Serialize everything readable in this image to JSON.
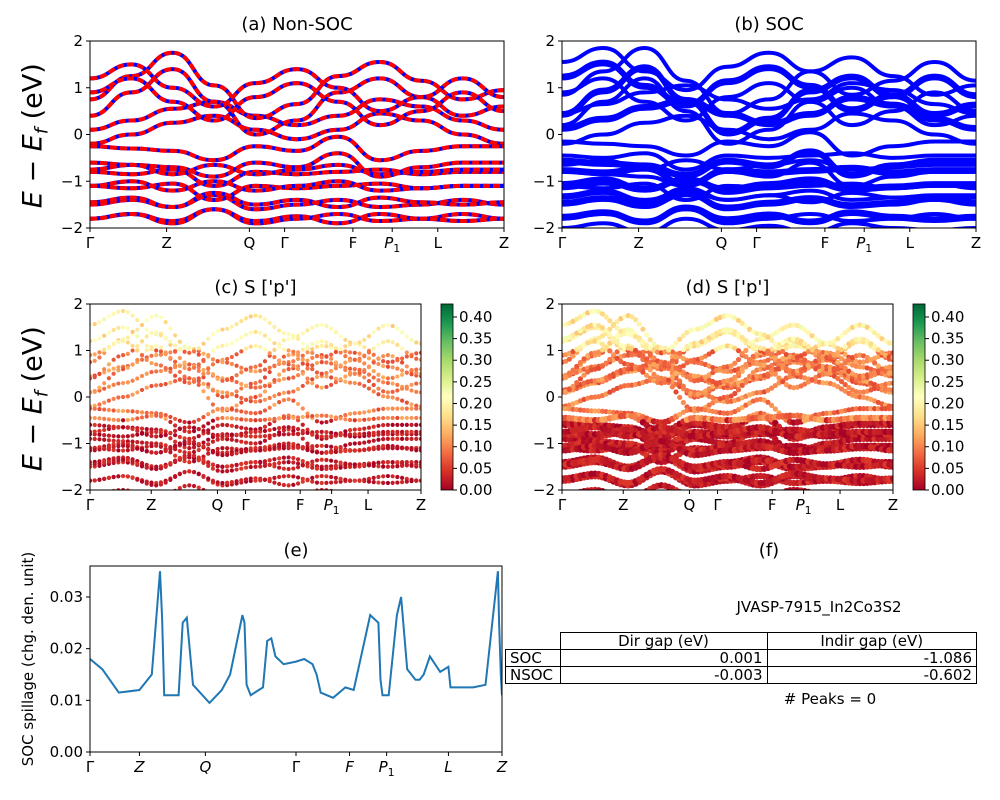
{
  "panels": {
    "a": {
      "title": "(a) Non-SOC"
    },
    "b": {
      "title": "(b) SOC"
    },
    "c": {
      "title": "(c)  S ['p']"
    },
    "d": {
      "title": "(d) S ['p']"
    },
    "e": {
      "title": "(e)"
    },
    "f": {
      "title": "(f)"
    }
  },
  "ylabel_energy": "E − E_f (eV)",
  "ylabel_spillage": "SOC spillage (chg. den. unit)",
  "kpath": [
    "Γ",
    "Z",
    "Q",
    "Γ",
    "F",
    "P1",
    "L",
    "Z"
  ],
  "material": "JVASP-7915_In2Co3S2",
  "gap_table": {
    "headers": [
      "",
      "Dir gap (eV)",
      "Indir gap (eV)"
    ],
    "rows": [
      [
        "SOC",
        "0.001",
        "-1.086"
      ],
      [
        "NSOC",
        "-0.003",
        "-0.602"
      ]
    ]
  },
  "peaks_text": "# Peaks = 0",
  "colors": {
    "nonsoc_up": "#0000ff",
    "nonsoc_dn": "#ff0000",
    "soc": "#0000ff",
    "spillage": "#1f77b4",
    "colormap": "RdYlGn"
  },
  "chart_data": [
    {
      "type": "line",
      "id": "a",
      "title": "(a) Non-SOC",
      "ylabel": "E − E_f (eV)",
      "ylim": [
        -2,
        2
      ],
      "yticks": [
        -2,
        -1,
        0,
        1,
        2
      ],
      "xticks": [
        "Γ",
        "Z",
        "Q",
        "Γ",
        "F",
        "P1",
        "L",
        "Z"
      ],
      "series": [
        {
          "values": [
            0.1,
            0.3,
            0.55,
            0.7,
            0.4,
            0.2,
            0.4,
            0.75,
            0.6,
            0.3,
            0.1
          ]
        },
        {
          "values": [
            0.4,
            0.9,
            1.4,
            0.7,
            0.0,
            0.3,
            0.9,
            1.2,
            0.8,
            0.4,
            0.6
          ]
        },
        {
          "values": [
            1.2,
            1.5,
            1.0,
            0.6,
            1.1,
            1.4,
            1.0,
            0.5,
            0.8,
            1.2,
            0.8
          ]
        },
        {
          "values": [
            -0.6,
            -0.65,
            -0.7,
            -0.9,
            -0.6,
            -0.7,
            -0.4,
            -0.9,
            -0.7,
            -0.6,
            -0.6
          ]
        },
        {
          "values": [
            -0.8,
            -0.85,
            -0.75,
            -1.1,
            -0.8,
            -0.85,
            -0.8,
            -0.75,
            -0.85,
            -0.8,
            -0.8
          ]
        },
        {
          "values": [
            -1.1,
            -1.0,
            -1.2,
            -1.0,
            -1.2,
            -1.1,
            -1.0,
            -1.2,
            -1.15,
            -1.1,
            -1.1
          ]
        },
        {
          "values": [
            -1.5,
            -1.4,
            -1.55,
            -1.3,
            -1.6,
            -1.5,
            -1.4,
            -1.55,
            -1.5,
            -1.4,
            -1.5
          ]
        },
        {
          "values": [
            -1.8,
            -1.7,
            -1.9,
            -1.6,
            -1.85,
            -1.75,
            -1.9,
            -1.7,
            -1.8,
            -1.85,
            -1.8
          ]
        }
      ]
    },
    {
      "type": "line",
      "id": "b",
      "title": "(b) SOC",
      "ylim": [
        -2,
        2
      ],
      "yticks": [
        -2,
        -1,
        0,
        1,
        2
      ],
      "xticks": [
        "Γ",
        "Z",
        "Q",
        "Γ",
        "F",
        "P1",
        "L",
        "Z"
      ],
      "series": [
        {
          "values": [
            0.1,
            0.3,
            0.55,
            0.7,
            0.4,
            0.2,
            0.4,
            0.75,
            0.6,
            0.3,
            0.1
          ]
        },
        {
          "values": [
            0.4,
            0.9,
            1.4,
            0.7,
            0.0,
            0.3,
            0.9,
            1.2,
            0.8,
            0.4,
            0.6
          ]
        },
        {
          "values": [
            1.2,
            1.5,
            1.0,
            0.6,
            1.1,
            1.4,
            1.0,
            0.5,
            0.8,
            1.2,
            0.8
          ]
        },
        {
          "values": [
            -0.6,
            -0.65,
            -0.7,
            -0.9,
            -0.6,
            -0.7,
            -0.4,
            -0.9,
            -0.7,
            -0.6,
            -0.6
          ]
        },
        {
          "values": [
            -0.8,
            -0.85,
            -0.75,
            -1.1,
            -0.8,
            -0.85,
            -0.8,
            -0.75,
            -0.85,
            -0.8,
            -0.8
          ]
        },
        {
          "values": [
            -1.1,
            -1.0,
            -1.2,
            -1.0,
            -1.2,
            -1.1,
            -1.0,
            -1.2,
            -1.15,
            -1.1,
            -1.1
          ]
        },
        {
          "values": [
            -1.5,
            -1.4,
            -1.55,
            -1.3,
            -1.6,
            -1.5,
            -1.4,
            -1.55,
            -1.5,
            -1.4,
            -1.5
          ]
        },
        {
          "values": [
            -1.8,
            -1.7,
            -1.9,
            -1.6,
            -1.85,
            -1.75,
            -1.9,
            -1.7,
            -1.8,
            -1.85,
            -1.8
          ]
        }
      ]
    },
    {
      "type": "scatter",
      "id": "c",
      "title": "(c)  S ['p']",
      "ylim": [
        -2,
        2
      ],
      "colorbar_ticks": [
        "0.00",
        "0.05",
        "0.10",
        "0.15",
        "0.20",
        "0.25",
        "0.30",
        "0.35",
        "0.40"
      ],
      "colorbar_range": [
        0,
        0.43
      ],
      "xticks": [
        "Γ",
        "Z",
        "Q",
        "Γ",
        "F",
        "P1",
        "L",
        "Z"
      ]
    },
    {
      "type": "scatter",
      "id": "d",
      "title": "(d) S ['p']",
      "ylim": [
        -2,
        2
      ],
      "colorbar_ticks": [
        "0.00",
        "0.05",
        "0.10",
        "0.15",
        "0.20",
        "0.25",
        "0.30",
        "0.35",
        "0.40"
      ],
      "colorbar_range": [
        0,
        0.43
      ],
      "xticks": [
        "Γ",
        "Z",
        "Q",
        "Γ",
        "F",
        "P1",
        "L",
        "Z"
      ]
    },
    {
      "type": "line",
      "id": "e",
      "title": "(e)",
      "ylabel": "SOC spillage (chg. den. unit)",
      "ylim": [
        0,
        0.036
      ],
      "yticks": [
        "0.00",
        "0.01",
        "0.02",
        "0.03"
      ],
      "xticks": [
        "Γ",
        "Z",
        "Q",
        "Γ",
        "F",
        "P1",
        "L",
        "Z"
      ],
      "x": [
        0,
        0.03,
        0.07,
        0.12,
        0.15,
        0.17,
        0.175,
        0.18,
        0.19,
        0.215,
        0.225,
        0.235,
        0.25,
        0.29,
        0.32,
        0.34,
        0.37,
        0.375,
        0.38,
        0.39,
        0.42,
        0.43,
        0.44,
        0.45,
        0.47,
        0.5,
        0.52,
        0.54,
        0.55,
        0.56,
        0.59,
        0.62,
        0.64,
        0.68,
        0.7,
        0.705,
        0.71,
        0.725,
        0.745,
        0.755,
        0.77,
        0.79,
        0.8,
        0.81,
        0.825,
        0.85,
        0.87,
        0.875,
        0.88,
        0.93,
        0.96,
        0.99,
        0.993,
        0.997,
        1.0
      ],
      "values": [
        0.018,
        0.016,
        0.0115,
        0.012,
        0.015,
        0.035,
        0.026,
        0.011,
        0.011,
        0.011,
        0.025,
        0.026,
        0.013,
        0.0095,
        0.012,
        0.015,
        0.0265,
        0.025,
        0.013,
        0.011,
        0.0125,
        0.0215,
        0.022,
        0.0185,
        0.017,
        0.0175,
        0.018,
        0.017,
        0.015,
        0.0115,
        0.0105,
        0.0125,
        0.012,
        0.0265,
        0.025,
        0.014,
        0.011,
        0.011,
        0.0265,
        0.03,
        0.016,
        0.014,
        0.014,
        0.015,
        0.0185,
        0.0155,
        0.0165,
        0.0125,
        0.0125,
        0.0125,
        0.013,
        0.035,
        0.025,
        0.015,
        0.011
      ]
    },
    {
      "type": "table",
      "id": "f",
      "title": "(f)",
      "subtitle": "JVASP-7915_In2Co3S2",
      "columns": [
        "",
        "Dir gap (eV)",
        "Indir gap (eV)"
      ],
      "rows": [
        [
          "SOC",
          "0.001",
          "-1.086"
        ],
        [
          "NSOC",
          "-0.003",
          "-0.602"
        ]
      ],
      "note": "# Peaks = 0"
    }
  ]
}
